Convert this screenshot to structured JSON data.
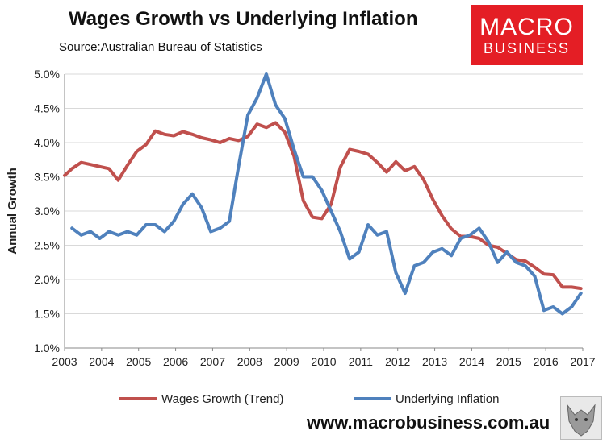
{
  "header": {
    "title": "Wages Growth vs Underlying Inflation",
    "source": "Source:Australian Bureau of Statistics"
  },
  "logo": {
    "line1": "MACRO",
    "line2": "BUSINESS"
  },
  "footer": {
    "url": "www.macrobusiness.com.au"
  },
  "colors": {
    "wages": "#c0504d",
    "inflation": "#4f81bd",
    "grid": "#d9d9d9"
  },
  "chart_data": {
    "type": "line",
    "title": "Wages Growth vs Underlying Inflation",
    "xlabel": "",
    "ylabel": "Annual Growth",
    "xlim": [
      2003.0,
      2017.0
    ],
    "ylim": [
      1.0,
      5.0
    ],
    "x_ticks": [
      "2003",
      "2004",
      "2005",
      "2006",
      "2007",
      "2008",
      "2009",
      "2010",
      "2011",
      "2012",
      "2013",
      "2014",
      "2015",
      "2016",
      "2017"
    ],
    "y_ticks": [
      "1.0%",
      "1.5%",
      "2.0%",
      "2.5%",
      "3.0%",
      "3.5%",
      "4.0%",
      "4.5%",
      "5.0%"
    ],
    "y_tick_values": [
      1.0,
      1.5,
      2.0,
      2.5,
      3.0,
      3.5,
      4.0,
      4.5,
      5.0
    ],
    "legend_position": "bottom",
    "series": [
      {
        "name": "Wages Growth (Trend)",
        "color": "#c0504d",
        "x": [
          2003.0,
          2003.2,
          2003.45,
          2003.7,
          2003.95,
          2004.2,
          2004.45,
          2004.7,
          2004.95,
          2005.2,
          2005.45,
          2005.7,
          2005.95,
          2006.2,
          2006.45,
          2006.7,
          2006.95,
          2007.2,
          2007.45,
          2007.7,
          2007.95,
          2008.2,
          2008.45,
          2008.7,
          2008.95,
          2009.2,
          2009.45,
          2009.7,
          2009.95,
          2010.2,
          2010.45,
          2010.7,
          2010.95,
          2011.2,
          2011.45,
          2011.7,
          2011.95,
          2012.2,
          2012.45,
          2012.7,
          2012.95,
          2013.2,
          2013.45,
          2013.7,
          2013.95,
          2014.2,
          2014.45,
          2014.7,
          2014.95,
          2015.2,
          2015.45,
          2015.7,
          2015.95,
          2016.2,
          2016.45,
          2016.7,
          2016.95
        ],
        "values": [
          3.52,
          3.62,
          3.71,
          3.68,
          3.65,
          3.62,
          3.45,
          3.67,
          3.87,
          3.97,
          4.17,
          4.12,
          4.1,
          4.16,
          4.12,
          4.07,
          4.04,
          4.0,
          4.06,
          4.03,
          4.09,
          4.27,
          4.22,
          4.29,
          4.15,
          3.8,
          3.15,
          2.91,
          2.89,
          3.1,
          3.64,
          3.9,
          3.87,
          3.83,
          3.71,
          3.57,
          3.72,
          3.59,
          3.65,
          3.46,
          3.17,
          2.93,
          2.74,
          2.63,
          2.63,
          2.6,
          2.5,
          2.47,
          2.38,
          2.29,
          2.27,
          2.18,
          2.08,
          2.07,
          1.89,
          1.89,
          1.87
        ]
      },
      {
        "name": "Underlying Inflation",
        "color": "#4f81bd",
        "x": [
          2003.2,
          2003.45,
          2003.7,
          2003.95,
          2004.2,
          2004.45,
          2004.7,
          2004.95,
          2005.2,
          2005.45,
          2005.7,
          2005.95,
          2006.2,
          2006.45,
          2006.7,
          2006.95,
          2007.2,
          2007.45,
          2007.7,
          2007.95,
          2008.2,
          2008.45,
          2008.7,
          2008.95,
          2009.2,
          2009.45,
          2009.7,
          2009.95,
          2010.2,
          2010.45,
          2010.7,
          2010.95,
          2011.2,
          2011.45,
          2011.7,
          2011.95,
          2012.2,
          2012.45,
          2012.7,
          2012.95,
          2013.2,
          2013.45,
          2013.7,
          2013.95,
          2014.2,
          2014.45,
          2014.7,
          2014.95,
          2015.2,
          2015.45,
          2015.7,
          2015.95,
          2016.2,
          2016.45,
          2016.7,
          2016.95
        ],
        "values": [
          2.75,
          2.65,
          2.7,
          2.6,
          2.7,
          2.65,
          2.7,
          2.65,
          2.8,
          2.8,
          2.7,
          2.85,
          3.1,
          3.25,
          3.05,
          2.7,
          2.75,
          2.85,
          3.65,
          4.4,
          4.65,
          5.0,
          4.55,
          4.35,
          3.9,
          3.5,
          3.5,
          3.3,
          3.0,
          2.7,
          2.3,
          2.4,
          2.8,
          2.65,
          2.7,
          2.1,
          1.8,
          2.2,
          2.25,
          2.4,
          2.45,
          2.35,
          2.6,
          2.65,
          2.75,
          2.55,
          2.25,
          2.4,
          2.25,
          2.2,
          2.05,
          1.55,
          1.6,
          1.5,
          1.6,
          1.8
        ]
      }
    ]
  }
}
